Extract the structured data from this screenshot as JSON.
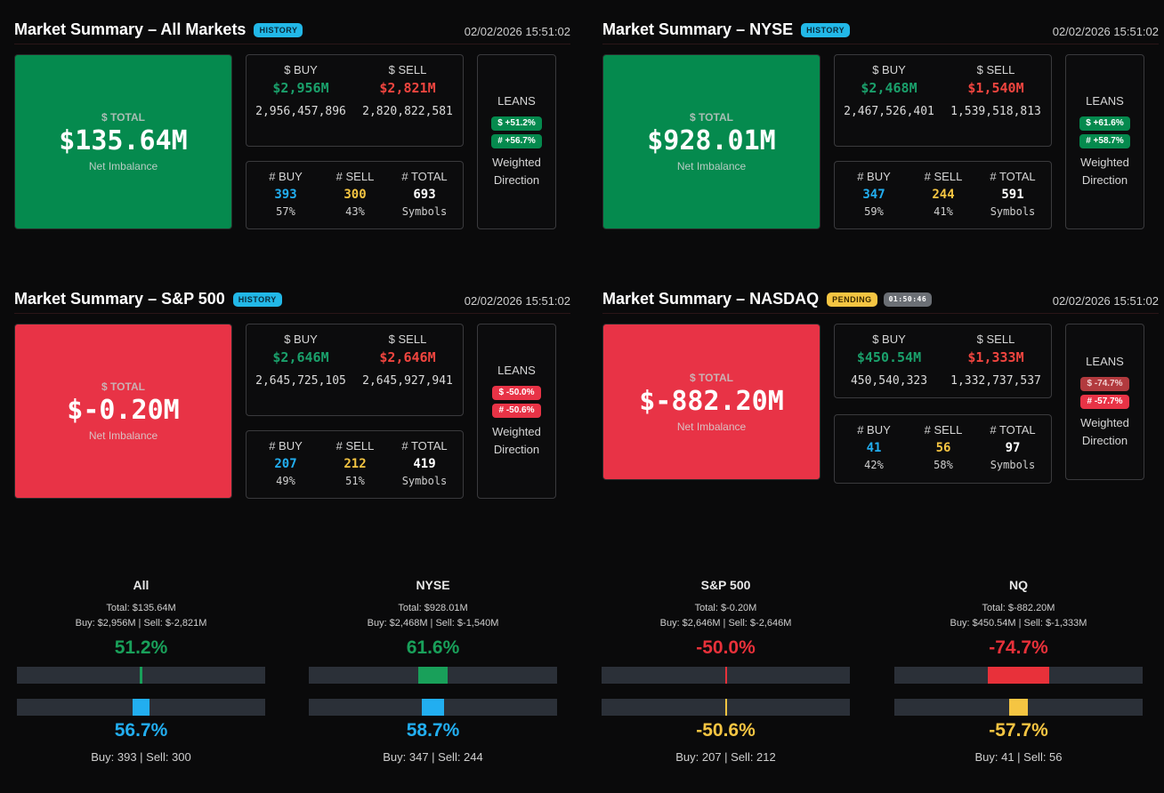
{
  "panels": [
    {
      "title": "Market Summary – All Markets",
      "badge": "HISTORY",
      "badge2": "",
      "time": "02/02/2026 15:51:02",
      "total_label": "$ TOTAL",
      "total": "$135.64M",
      "total_sub": "Net Imbalance",
      "sign": "positive",
      "buy_label": "$ BUY",
      "sell_label": "$ SELL",
      "buy_short": "$2,956M",
      "sell_short": "$2,821M",
      "buy_raw": "2,956,457,896",
      "sell_raw": "2,820,822,581",
      "cbuy_label": "# BUY",
      "csell_label": "# SELL",
      "ctotal_label": "# TOTAL",
      "cbuy": "393",
      "csell": "300",
      "ctotal": "693",
      "cbuy_pct": "57%",
      "csell_pct": "43%",
      "ctotal_sub": "Symbols",
      "leans_label": "LEANS",
      "lean1": "$ +51.2%",
      "lean2": "# +56.7%",
      "lean1_style": "g",
      "lean2_style": "g",
      "lean_sub1": "Weighted",
      "lean_sub2": "Direction"
    },
    {
      "title": "Market Summary – NYSE",
      "badge": "HISTORY",
      "badge2": "",
      "time": "02/02/2026 15:51:02",
      "total_label": "$ TOTAL",
      "total": "$928.01M",
      "total_sub": "Net Imbalance",
      "sign": "positive",
      "buy_label": "$ BUY",
      "sell_label": "$ SELL",
      "buy_short": "$2,468M",
      "sell_short": "$1,540M",
      "buy_raw": "2,467,526,401",
      "sell_raw": "1,539,518,813",
      "cbuy_label": "# BUY",
      "csell_label": "# SELL",
      "ctotal_label": "# TOTAL",
      "cbuy": "347",
      "csell": "244",
      "ctotal": "591",
      "cbuy_pct": "59%",
      "csell_pct": "41%",
      "ctotal_sub": "Symbols",
      "leans_label": "LEANS",
      "lean1": "$ +61.6%",
      "lean2": "# +58.7%",
      "lean1_style": "g",
      "lean2_style": "g",
      "lean_sub1": "Weighted",
      "lean_sub2": "Direction"
    },
    {
      "title": "Market Summary – S&P 500",
      "badge": "HISTORY",
      "badge2": "",
      "time": "02/02/2026 15:51:02",
      "total_label": "$ TOTAL",
      "total": "$-0.20M",
      "total_sub": "Net Imbalance",
      "sign": "negative",
      "buy_label": "$ BUY",
      "sell_label": "$ SELL",
      "buy_short": "$2,646M",
      "sell_short": "$2,646M",
      "buy_raw": "2,645,725,105",
      "sell_raw": "2,645,927,941",
      "cbuy_label": "# BUY",
      "csell_label": "# SELL",
      "ctotal_label": "# TOTAL",
      "cbuy": "207",
      "csell": "212",
      "ctotal": "419",
      "cbuy_pct": "49%",
      "csell_pct": "51%",
      "ctotal_sub": "Symbols",
      "leans_label": "LEANS",
      "lean1": "$ -50.0%",
      "lean2": "# -50.6%",
      "lean1_style": "r",
      "lean2_style": "r",
      "lean_sub1": "Weighted",
      "lean_sub2": "Direction"
    },
    {
      "title": "Market Summary – NASDAQ",
      "badge": "PENDING",
      "badge2": "01:50:46",
      "time": "02/02/2026 15:51:02",
      "total_label": "$ TOTAL",
      "total": "$-882.20M",
      "total_sub": "Net Imbalance",
      "sign": "negative",
      "buy_label": "$ BUY",
      "sell_label": "$ SELL",
      "buy_short": "$450.54M",
      "sell_short": "$1,333M",
      "buy_raw": "450,540,323",
      "sell_raw": "1,332,737,537",
      "cbuy_label": "# BUY",
      "csell_label": "# SELL",
      "ctotal_label": "# TOTAL",
      "cbuy": "41",
      "csell": "56",
      "ctotal": "97",
      "cbuy_pct": "42%",
      "csell_pct": "58%",
      "ctotal_sub": "Symbols",
      "leans_label": "LEANS",
      "lean1": "$ -74.7%",
      "lean2": "# -57.7%",
      "lean1_style": "dr",
      "lean2_style": "r",
      "lean_sub1": "Weighted",
      "lean_sub2": "Direction"
    }
  ],
  "bottom": [
    {
      "name": "All",
      "total": "Total: $135.64M",
      "buysell": "Buy: $2,956M | Sell: $-2,821M",
      "pct1": "51.2%",
      "pct1_value": 51.2,
      "pct1_color": "#19a05a",
      "pct2": "56.7%",
      "pct2_value": 56.7,
      "pct2_color": "#22aef0",
      "foot": "Buy: 393 | Sell: 300"
    },
    {
      "name": "NYSE",
      "total": "Total: $928.01M",
      "buysell": "Buy: $2,468M | Sell: $-1,540M",
      "pct1": "61.6%",
      "pct1_value": 61.6,
      "pct1_color": "#19a05a",
      "pct2": "58.7%",
      "pct2_value": 58.7,
      "pct2_color": "#22aef0",
      "foot": "Buy: 347 | Sell: 244"
    },
    {
      "name": "S&P 500",
      "total": "Total: $-0.20M",
      "buysell": "Buy: $2,646M | Sell: $-2,646M",
      "pct1": "-50.0%",
      "pct1_value": -50.0,
      "pct1_color": "#e8313a",
      "pct2": "-50.6%",
      "pct2_value": -50.6,
      "pct2_color": "#f5c542",
      "foot": "Buy: 207 | Sell: 212"
    },
    {
      "name": "NQ",
      "total": "Total: $-882.20M",
      "buysell": "Buy: $450.54M | Sell: $-1,333M",
      "pct1": "-74.7%",
      "pct1_value": -74.7,
      "pct1_color": "#e8313a",
      "pct2": "-57.7%",
      "pct2_value": -57.7,
      "pct2_color": "#f5c542",
      "foot": "Buy: 41 | Sell: 56"
    }
  ]
}
